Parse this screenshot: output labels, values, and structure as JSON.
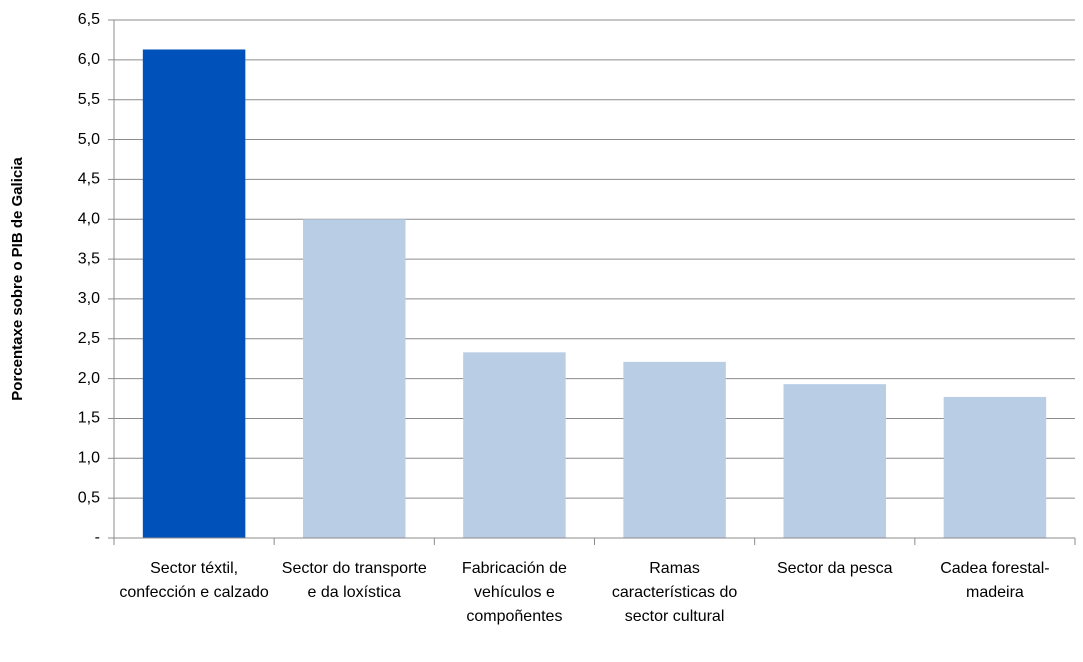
{
  "chart_data": {
    "type": "bar",
    "ylabel": "Porcentaxe sobre o PIB de Galicia",
    "categories": [
      "Sector téxtil, confección e calzado",
      "Sector do transporte e da loxística",
      "Fabricación de vehículos e compoñentes",
      "Ramas características do sector cultural",
      "Sector da pesca",
      "Cadea forestal-madeira"
    ],
    "values": [
      6.13,
      4.0,
      2.33,
      2.21,
      1.93,
      1.77
    ],
    "colors": [
      "#0052ba",
      "#b9cde5",
      "#b9cde5",
      "#b9cde5",
      "#b9cde5",
      "#b9cde5"
    ],
    "ylim": [
      0,
      6.5
    ],
    "yticks": [
      {
        "value": 0,
        "label": "-"
      },
      {
        "value": 0.5,
        "label": "0,5"
      },
      {
        "value": 1,
        "label": "1,0"
      },
      {
        "value": 1.5,
        "label": "1,5"
      },
      {
        "value": 2,
        "label": "2,0"
      },
      {
        "value": 2.5,
        "label": "2,5"
      },
      {
        "value": 3,
        "label": "3,0"
      },
      {
        "value": 3.5,
        "label": "3,5"
      },
      {
        "value": 4,
        "label": "4,0"
      },
      {
        "value": 4.5,
        "label": "4,5"
      },
      {
        "value": 5,
        "label": "5,0"
      },
      {
        "value": 5.5,
        "label": "5,5"
      },
      {
        "value": 6,
        "label": "6,0"
      },
      {
        "value": 6.5,
        "label": "6,5"
      }
    ],
    "grid": true
  }
}
